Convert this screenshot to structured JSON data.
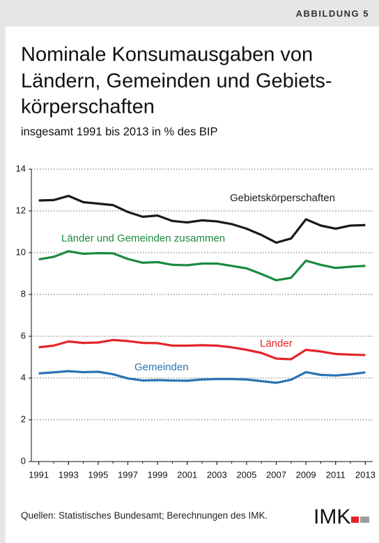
{
  "header": {
    "badge": "ABBILDUNG 5"
  },
  "chart_data": {
    "type": "line",
    "title": [
      "Nominale Konsumausgaben von",
      "Ländern, Gemeinden und Gebiets-",
      "körperschaften"
    ],
    "subtitle": "insgesamt 1991 bis 2013 in % des BIP",
    "x": [
      1991,
      1992,
      1993,
      1994,
      1995,
      1996,
      1997,
      1998,
      1999,
      2000,
      2001,
      2002,
      2003,
      2004,
      2005,
      2006,
      2007,
      2008,
      2009,
      2010,
      2011,
      2012,
      2013
    ],
    "xlim": [
      1990.5,
      2013.5
    ],
    "xticks": [
      1991,
      1993,
      1995,
      1997,
      1999,
      2001,
      2003,
      2005,
      2007,
      2009,
      2011,
      2013
    ],
    "ylim": [
      0,
      14
    ],
    "yticks": [
      0,
      2,
      4,
      6,
      8,
      10,
      12,
      14
    ],
    "grid": true,
    "series": [
      {
        "name": "Gebietskörperschaften",
        "color": "#1a1a1a",
        "values": [
          12.5,
          12.52,
          12.72,
          12.42,
          12.35,
          12.28,
          11.95,
          11.72,
          11.78,
          11.52,
          11.45,
          11.55,
          11.5,
          11.37,
          11.15,
          10.85,
          10.48,
          10.68,
          11.6,
          11.3,
          11.15,
          11.3,
          11.32
        ]
      },
      {
        "name": "Länder und Gemeinden zusammen",
        "color": "#1b8a3f",
        "values": [
          9.68,
          9.8,
          10.07,
          9.95,
          9.98,
          9.97,
          9.7,
          9.52,
          9.55,
          9.42,
          9.4,
          9.48,
          9.48,
          9.37,
          9.25,
          8.98,
          8.68,
          8.8,
          9.62,
          9.42,
          9.27,
          9.33,
          9.37
        ]
      },
      {
        "name": "Länder",
        "color": "#e3252a",
        "values": [
          5.47,
          5.55,
          5.75,
          5.68,
          5.7,
          5.82,
          5.77,
          5.68,
          5.67,
          5.55,
          5.55,
          5.57,
          5.55,
          5.47,
          5.35,
          5.2,
          4.93,
          4.9,
          5.35,
          5.27,
          5.15,
          5.12,
          5.1
        ]
      },
      {
        "name": "Gemeinden",
        "color": "#2a72b5",
        "values": [
          4.22,
          4.27,
          4.33,
          4.28,
          4.3,
          4.18,
          3.98,
          3.88,
          3.9,
          3.88,
          3.87,
          3.93,
          3.95,
          3.95,
          3.93,
          3.85,
          3.77,
          3.92,
          4.28,
          4.15,
          4.12,
          4.18,
          4.27
        ]
      }
    ]
  },
  "footer": {
    "source": "Quellen: Statistisches Bundesamt; Berechnungen des IMK.",
    "logo": "IMK"
  }
}
